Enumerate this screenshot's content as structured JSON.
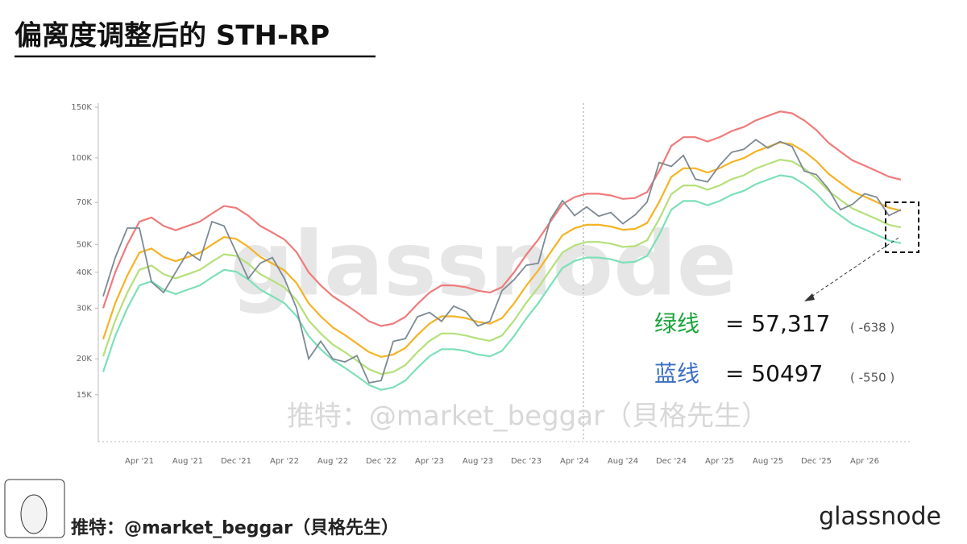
{
  "header": {
    "title": "偏离度调整后的 STH-RP"
  },
  "chart_data": {
    "type": "line",
    "log_scale": true,
    "grid": false,
    "watermark": "glassnode",
    "overlay_text": "推特：@market_beggar（貝格先生）",
    "categories": [
      null,
      null,
      null,
      "Apr '21",
      null,
      null,
      null,
      "Aug '21",
      null,
      null,
      null,
      "Dec '21",
      null,
      null,
      null,
      "Apr '22",
      null,
      null,
      null,
      "Aug '22",
      null,
      null,
      null,
      "Dec '22",
      null,
      null,
      null,
      "Apr '23",
      null,
      null,
      null,
      "Aug '23",
      null,
      null,
      null,
      "Dec '23",
      null,
      null,
      null,
      "Apr '24",
      null,
      null,
      null,
      "Aug '24",
      null,
      null,
      null,
      "Dec '24",
      null,
      null,
      null,
      "Apr '25",
      null,
      null,
      null,
      "Aug '25",
      null,
      null,
      null,
      "Dec '25",
      null,
      null,
      null,
      "Apr '26",
      null,
      null,
      null
    ],
    "ylim": [
      10500,
      155000
    ],
    "yticks": [
      {
        "value": 15000,
        "label": "15K"
      },
      {
        "value": 20000,
        "label": "20K"
      },
      {
        "value": 30000,
        "label": "30K"
      },
      {
        "value": 40000,
        "label": "40K"
      },
      {
        "value": 50000,
        "label": "50K"
      },
      {
        "value": 70000,
        "label": "70K"
      },
      {
        "value": 100000,
        "label": "100K"
      },
      {
        "value": 150000,
        "label": "150K"
      }
    ],
    "series": [
      {
        "color": "#ef7b7b",
        "values": [
          30000,
          40000,
          50000,
          60000,
          62000,
          58000,
          56000,
          58000,
          60000,
          64000,
          68000,
          67000,
          63000,
          58000,
          55000,
          52000,
          47000,
          40000,
          36000,
          33000,
          31000,
          29000,
          27000,
          26000,
          26500,
          28000,
          31000,
          34000,
          36000,
          36000,
          35500,
          34500,
          34000,
          35500,
          40000,
          46000,
          52000,
          60000,
          69000,
          73000,
          75000,
          75000,
          74000,
          72000,
          72500,
          76000,
          90000,
          110000,
          118000,
          118000,
          114000,
          118000,
          124000,
          128000,
          135000,
          140000,
          145000,
          143000,
          135000,
          125000,
          113000,
          105000,
          98000,
          94000,
          90000,
          86000,
          84000
        ]
      },
      {
        "color": "#f5b324",
        "values": [
          23400,
          31200,
          39000,
          46800,
          48400,
          45200,
          43700,
          45200,
          46800,
          49900,
          53000,
          52300,
          49100,
          45200,
          42900,
          40600,
          36700,
          31200,
          28100,
          25700,
          24200,
          22600,
          21100,
          20300,
          20700,
          21800,
          24200,
          26500,
          28100,
          28100,
          27700,
          26900,
          26500,
          27700,
          31200,
          35900,
          40600,
          46800,
          53800,
          56900,
          58500,
          58500,
          57700,
          56200,
          56600,
          59300,
          70200,
          85800,
          92000,
          92000,
          88900,
          92000,
          96700,
          99800,
          105300,
          109200,
          113100,
          111500,
          105300,
          97500,
          88100,
          81900,
          76400,
          73300,
          70200,
          67100,
          65500
        ]
      },
      {
        "color": "#b5e07a",
        "values": [
          20400,
          27200,
          34000,
          40800,
          42200,
          39400,
          38100,
          39400,
          40800,
          43500,
          46200,
          45600,
          42800,
          39400,
          37400,
          35400,
          32000,
          27200,
          24500,
          22400,
          21100,
          19700,
          18400,
          17700,
          18000,
          19000,
          21100,
          23100,
          24500,
          24500,
          24100,
          23500,
          23100,
          24100,
          27200,
          31300,
          35400,
          40800,
          46900,
          49600,
          51000,
          51000,
          50300,
          49000,
          49300,
          51700,
          61200,
          74800,
          80200,
          80200,
          77500,
          80200,
          84300,
          87000,
          91800,
          95200,
          98600,
          97200,
          91800,
          85000,
          76800,
          71400,
          66600,
          63900,
          61200,
          58500,
          57317
        ]
      },
      {
        "color": "#7de0b8",
        "values": [
          18000,
          24000,
          30000,
          36000,
          37200,
          34800,
          33600,
          34800,
          36000,
          38400,
          40800,
          40200,
          37800,
          34800,
          33000,
          31200,
          28200,
          24000,
          21600,
          19800,
          18600,
          17400,
          16200,
          15600,
          15900,
          16800,
          18600,
          20400,
          21600,
          21600,
          21300,
          20700,
          20400,
          21300,
          24000,
          27600,
          31200,
          36000,
          41400,
          43800,
          45000,
          45000,
          44400,
          43200,
          43500,
          45600,
          54000,
          66000,
          70800,
          70800,
          68400,
          70800,
          74400,
          76800,
          81000,
          84000,
          87000,
          85800,
          81000,
          75000,
          67800,
          63000,
          58800,
          56400,
          54000,
          51600,
          50497
        ]
      },
      {
        "color": "#7d8a93",
        "values": [
          33000,
          45000,
          57000,
          57000,
          37000,
          34000,
          40000,
          47000,
          44000,
          60000,
          58000,
          47000,
          38000,
          43000,
          45000,
          38000,
          30000,
          20000,
          23000,
          20000,
          19500,
          20500,
          16500,
          16800,
          23000,
          23500,
          28000,
          29000,
          27000,
          30500,
          29200,
          26000,
          27000,
          34500,
          37700,
          42300,
          43000,
          61000,
          71000,
          63000,
          67500,
          62700,
          64600,
          59000,
          63300,
          70200,
          96400,
          93400,
          102000,
          84300,
          82500,
          94200,
          104600,
          107100,
          115700,
          108200,
          114000,
          109500,
          90000,
          87500,
          78000,
          66000,
          69000,
          75000,
          73000,
          63000,
          66000
        ]
      }
    ],
    "annotations": [
      {
        "label": "绿线",
        "color": "#1aa53a",
        "text": "= 57,317",
        "delta": "( -638 )"
      },
      {
        "label": "蓝线",
        "color": "#3a6fc4",
        "text": "= 50497",
        "delta": "( -550 )"
      }
    ]
  },
  "footer": {
    "credit": "推特：@market_beggar（貝格先生）",
    "logo": "glassnode"
  }
}
